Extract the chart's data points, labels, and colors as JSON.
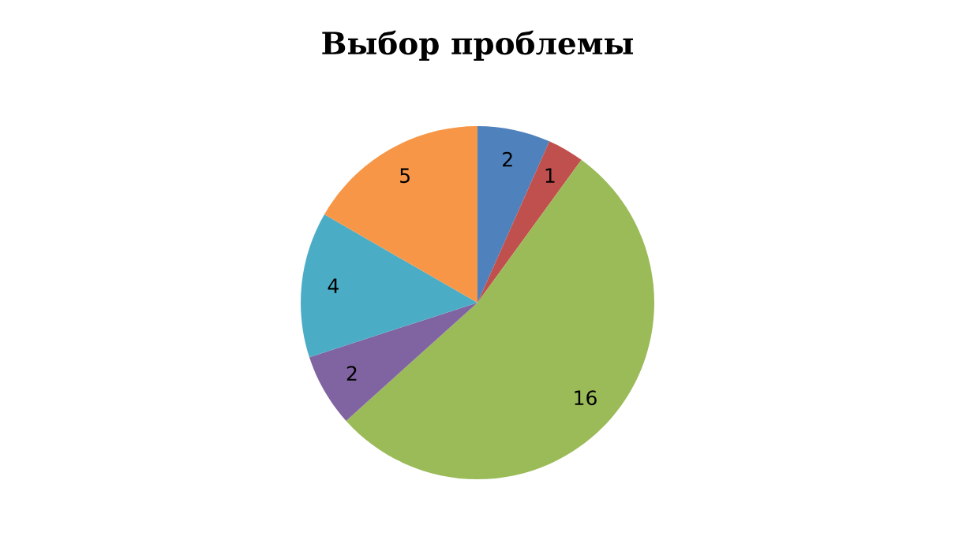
{
  "chart_data": {
    "type": "pie",
    "title": "Выбор проблемы",
    "categories": [
      null,
      null,
      null,
      null,
      null,
      null
    ],
    "values": [
      2,
      1,
      16,
      2,
      4,
      5
    ],
    "colors": [
      "#4f81bd",
      "#c0504d",
      "#9bbb59",
      "#8064a2",
      "#4bacc6",
      "#f79646"
    ],
    "data_labels": true,
    "legend": false
  }
}
